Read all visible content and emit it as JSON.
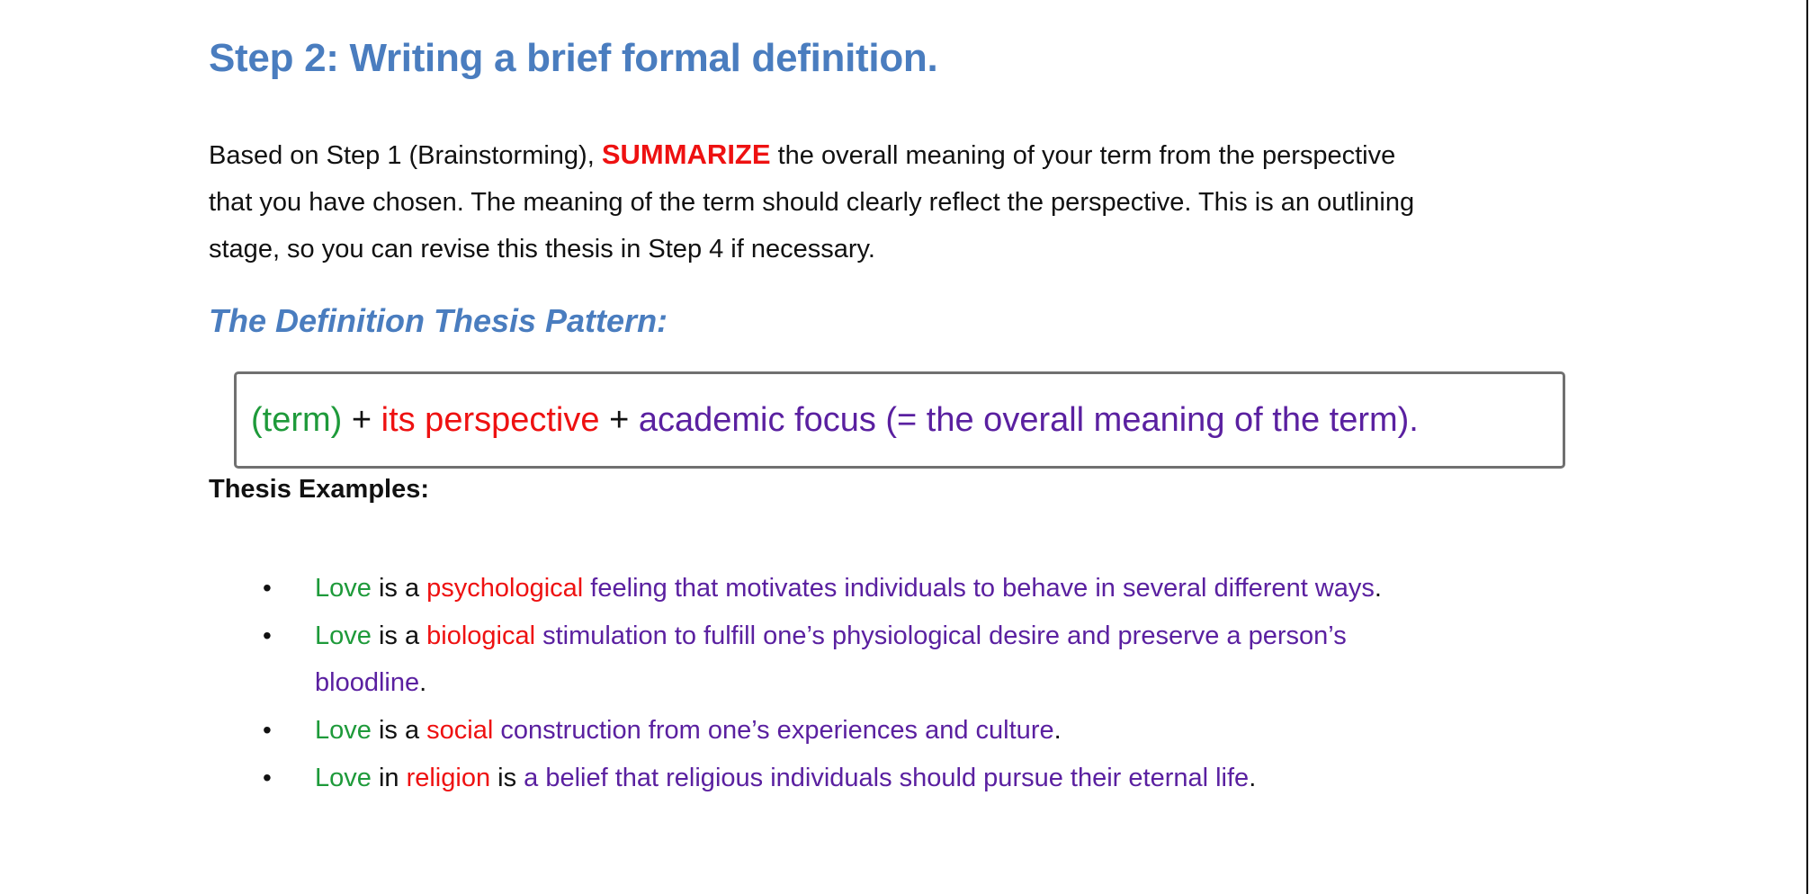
{
  "heading": "Step 2: Writing a brief formal definition.",
  "intro": {
    "line1_before": "Based on Step 1 (Brainstorming), ",
    "line1_emphasis": "SUMMARIZE",
    "line1_after": " the overall meaning of your term from the perspective",
    "line2": "that you have chosen. The meaning of the term should clearly reflect the perspective. This is an outlining",
    "line3": "stage, so you can revise this thesis in Step 4 if necessary."
  },
  "subheading": "The Definition Thesis Pattern:",
  "pattern": {
    "term": "(term)",
    "plus1": " + ",
    "perspective": "its perspective",
    "plus2": " + ",
    "focus": "academic focus (= the overall meaning of the term)."
  },
  "examples_label": "Thesis Examples:",
  "bullet_glyph": "•",
  "examples": [
    {
      "term": "Love",
      "link": " is a ",
      "perspective": "psychological",
      "focus": " feeling that motivates individuals to behave in several different ways",
      "end": "."
    },
    {
      "term": "Love",
      "link": " is a ",
      "perspective": "biological",
      "focus": " stimulation to fulfill one’s physiological desire and preserve a person’s",
      "focus_cont": "bloodline",
      "end": "."
    },
    {
      "term": "Love",
      "link": " is a ",
      "perspective": "social",
      "focus": " construction from one’s experiences and culture",
      "end": "."
    },
    {
      "term": "Love",
      "link": " in ",
      "perspective": "religion",
      "link2": " is ",
      "focus": "a belief that religious individuals should pursue their eternal life",
      "end": "."
    }
  ],
  "colors": {
    "heading_blue": "#4a7dbf",
    "term_green": "#1e9a3a",
    "perspective_red": "#ee1111",
    "focus_purple": "#5a20a0"
  }
}
